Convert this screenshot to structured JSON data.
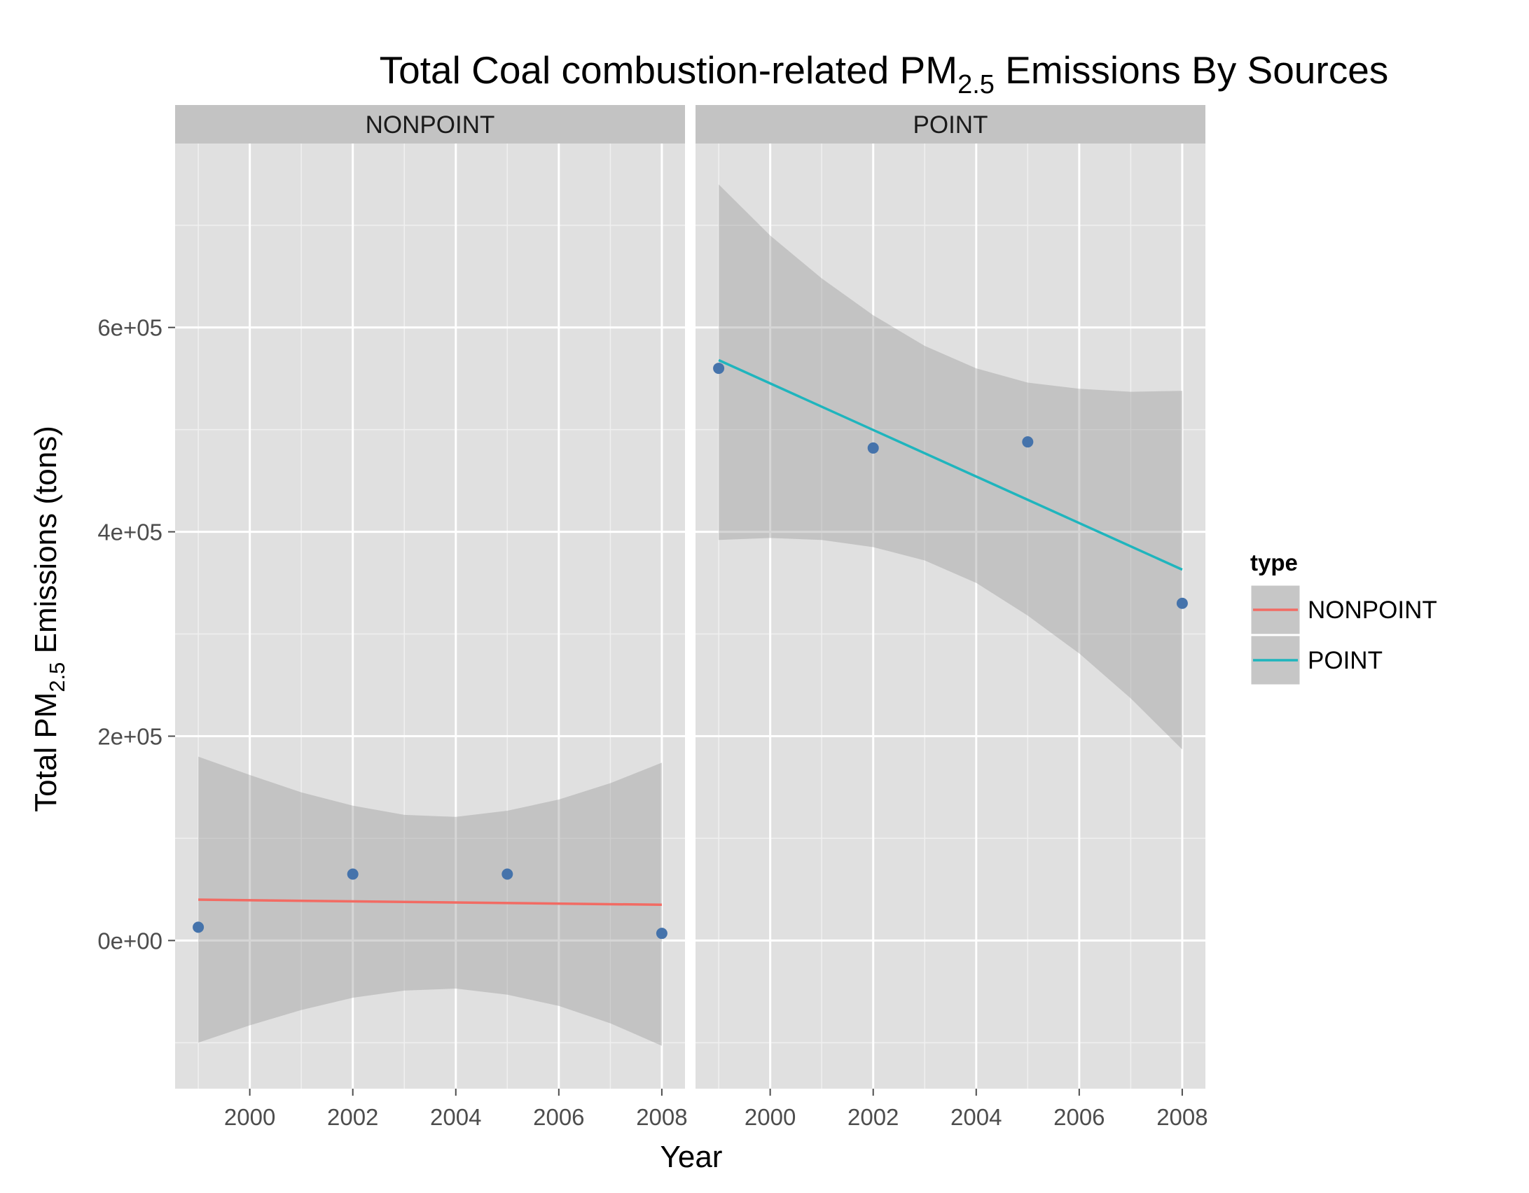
{
  "chart_data": {
    "type": "scatter",
    "title_main": "Total Coal combustion-related PM",
    "title_sub": "2.5",
    "title_tail": " Emissions By Sources",
    "xlabel": "Year",
    "ylabel_main": "Total PM",
    "ylabel_sub": "2.5",
    "ylabel_tail": " Emissions (tons)",
    "xlim": [
      1998.55,
      2008.45
    ],
    "ylim": [
      -145000,
      780000
    ],
    "x_ticks": [
      2000,
      2002,
      2004,
      2006,
      2008
    ],
    "x_tick_labels": [
      "2000",
      "2002",
      "2004",
      "2006",
      "2008"
    ],
    "y_ticks": [
      0,
      200000,
      400000,
      600000
    ],
    "y_tick_labels": [
      "0e+00",
      "2e+05",
      "4e+05",
      "6e+05"
    ],
    "grid": true,
    "point_color": "#4573ab",
    "band_color": "#999999",
    "panel_bg": "#e0e0e0",
    "strip_bg": "#c3c3c3",
    "panels": [
      {
        "strip": "NONPOINT",
        "series_color": "#f26b63",
        "points": [
          {
            "x": 1999,
            "y": 13000
          },
          {
            "x": 2002,
            "y": 65000
          },
          {
            "x": 2005,
            "y": 65000
          },
          {
            "x": 2008,
            "y": 7000
          }
        ],
        "fit": [
          [
            1999,
            40000
          ],
          [
            2008,
            35000
          ]
        ],
        "band_upper": [
          [
            1999,
            180000
          ],
          [
            2000,
            162000
          ],
          [
            2001,
            145000
          ],
          [
            2002,
            132000
          ],
          [
            2003,
            123000
          ],
          [
            2004,
            121000
          ],
          [
            2005,
            127000
          ],
          [
            2006,
            138000
          ],
          [
            2007,
            154000
          ],
          [
            2008,
            174000
          ]
        ],
        "band_lower": [
          [
            1999,
            -100000
          ],
          [
            2000,
            -83000
          ],
          [
            2001,
            -68000
          ],
          [
            2002,
            -56000
          ],
          [
            2003,
            -49000
          ],
          [
            2004,
            -47000
          ],
          [
            2005,
            -53000
          ],
          [
            2006,
            -64000
          ],
          [
            2007,
            -81000
          ],
          [
            2008,
            -103000
          ]
        ]
      },
      {
        "strip": "POINT",
        "series_color": "#1fb5bd",
        "points": [
          {
            "x": 1999,
            "y": 560000
          },
          {
            "x": 2002,
            "y": 482000
          },
          {
            "x": 2005,
            "y": 488000
          },
          {
            "x": 2008,
            "y": 330000
          }
        ],
        "fit": [
          [
            1999,
            568000
          ],
          [
            2008,
            363000
          ]
        ],
        "band_upper": [
          [
            1999,
            740000
          ],
          [
            2000,
            690000
          ],
          [
            2001,
            648000
          ],
          [
            2002,
            612000
          ],
          [
            2003,
            582000
          ],
          [
            2004,
            560000
          ],
          [
            2005,
            546000
          ],
          [
            2006,
            540000
          ],
          [
            2007,
            537000
          ],
          [
            2008,
            538000
          ]
        ],
        "band_lower": [
          [
            1999,
            392000
          ],
          [
            2000,
            394000
          ],
          [
            2001,
            392000
          ],
          [
            2002,
            385000
          ],
          [
            2003,
            372000
          ],
          [
            2004,
            350000
          ],
          [
            2005,
            318000
          ],
          [
            2006,
            281000
          ],
          [
            2007,
            237000
          ],
          [
            2008,
            187000
          ]
        ]
      }
    ],
    "legend": {
      "title": "type",
      "position": "right",
      "entries": [
        {
          "label": "NONPOINT",
          "color": "#f26b63"
        },
        {
          "label": "POINT",
          "color": "#1fb5bd"
        }
      ]
    }
  }
}
